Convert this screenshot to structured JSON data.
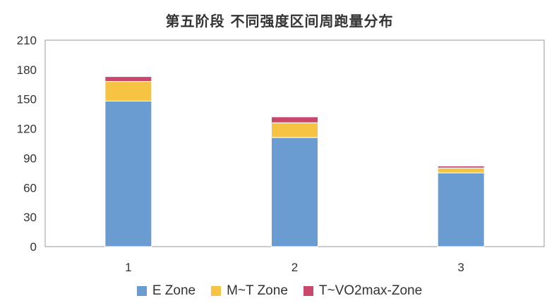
{
  "chart_data": {
    "type": "bar",
    "stacked": true,
    "title": "第五阶段 不同强度区间周跑量分布",
    "categories": [
      "1",
      "2",
      "3"
    ],
    "series": [
      {
        "name": "E Zone",
        "values": [
          148,
          111,
          75
        ],
        "color": "#6a9bd1"
      },
      {
        "name": "M~T Zone",
        "values": [
          20,
          15,
          5
        ],
        "color": "#f6c342"
      },
      {
        "name": "T~VO2max-Zone",
        "values": [
          5,
          6,
          2
        ],
        "color": "#c9476b"
      }
    ],
    "ylim": [
      0,
      210
    ],
    "yticks": [
      0,
      30,
      60,
      90,
      120,
      150,
      180,
      210
    ],
    "grid": false,
    "legend_position": "bottom"
  }
}
